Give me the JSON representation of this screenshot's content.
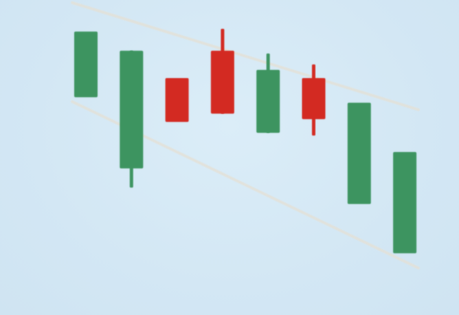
{
  "chart_data": {
    "type": "candlestick",
    "title": "",
    "xlabel": "",
    "ylabel": "",
    "axes_visible": false,
    "grid": false,
    "ylim": [
      0,
      100
    ],
    "colors": {
      "background": "#d4e8f5",
      "bullish": "#3e9461",
      "bearish": "#d32a22",
      "channel": "#e3e1d8"
    },
    "candles": [
      {
        "direction": "bullish",
        "open": 70,
        "high": 94,
        "low": 70,
        "close": 94
      },
      {
        "direction": "bullish",
        "open": 44,
        "high": 87,
        "low": 37,
        "close": 87
      },
      {
        "direction": "bearish",
        "open": 77,
        "high": 77,
        "low": 61,
        "close": 61
      },
      {
        "direction": "bearish",
        "open": 87,
        "high": 95,
        "low": 64,
        "close": 64
      },
      {
        "direction": "bullish",
        "open": 57,
        "high": 86,
        "low": 57,
        "close": 80
      },
      {
        "direction": "bearish",
        "open": 77,
        "high": 82,
        "low": 56,
        "close": 62
      },
      {
        "direction": "bullish",
        "open": 31,
        "high": 68,
        "low": 31,
        "close": 68
      },
      {
        "direction": "bullish",
        "open": 13,
        "high": 50,
        "low": 13,
        "close": 50
      }
    ],
    "channel_lines": [
      {
        "name": "upper",
        "start_index": 0,
        "start_value": 103,
        "end_index": 7,
        "end_value": 67
      },
      {
        "name": "lower",
        "start_index": 0,
        "start_value": 66,
        "end_index": 7,
        "end_value": 10
      }
    ]
  }
}
